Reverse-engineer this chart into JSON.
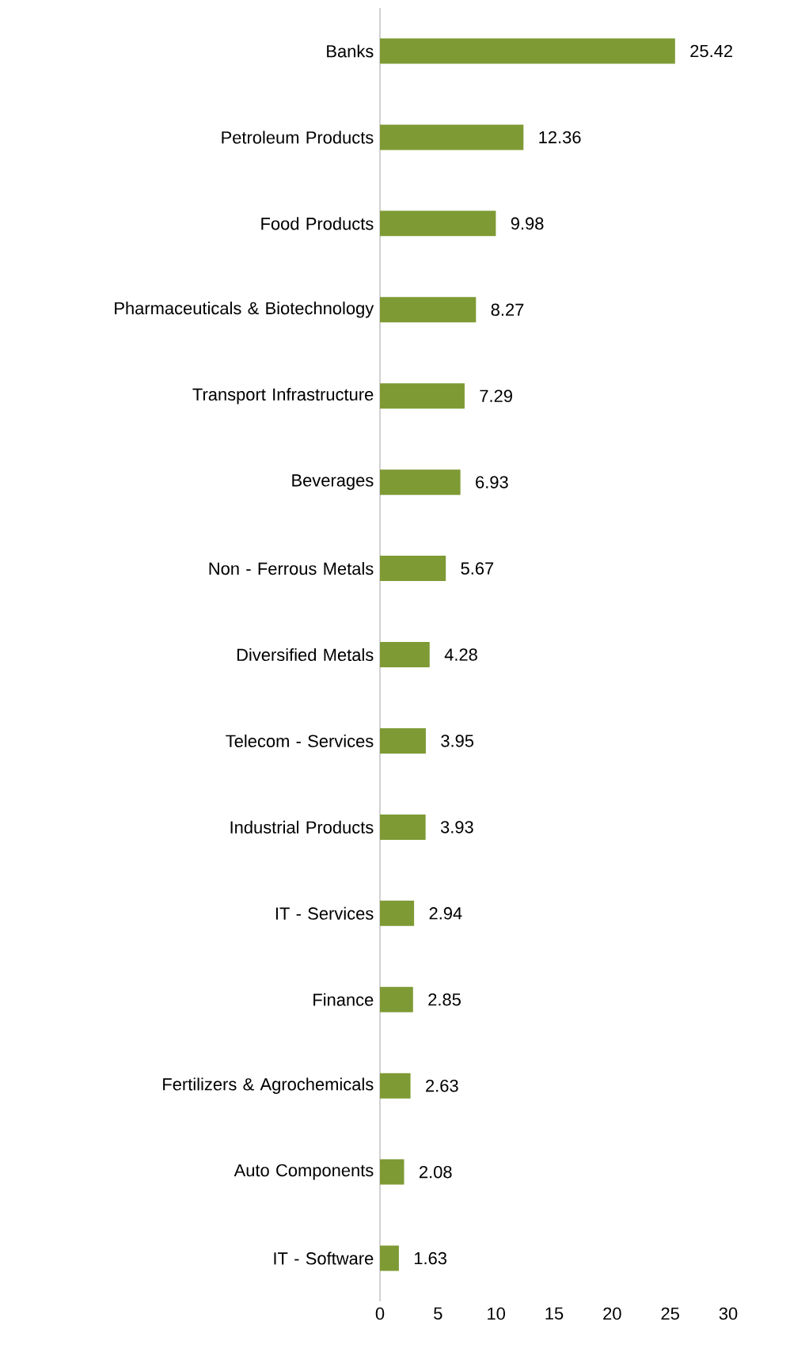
{
  "chart_data": {
    "type": "bar",
    "orientation": "horizontal",
    "categories": [
      "Banks",
      "Petroleum Products",
      "Food Products",
      "Pharmaceuticals & Biotechnology",
      "Transport Infrastructure",
      "Beverages",
      "Non - Ferrous Metals",
      "Diversified Metals",
      "Telecom - Services",
      "Industrial Products",
      "IT - Services",
      "Finance",
      "Fertilizers & Agrochemicals",
      "Auto Components",
      "IT - Software"
    ],
    "values": [
      25.42,
      12.36,
      9.98,
      8.27,
      7.29,
      6.93,
      5.67,
      4.28,
      3.95,
      3.93,
      2.94,
      2.85,
      2.63,
      2.08,
      1.63
    ],
    "color": "#7e9a34",
    "xlim": [
      0,
      30
    ],
    "xticks": [
      0,
      5,
      10,
      15,
      20,
      25,
      30
    ],
    "data_labels": true
  }
}
